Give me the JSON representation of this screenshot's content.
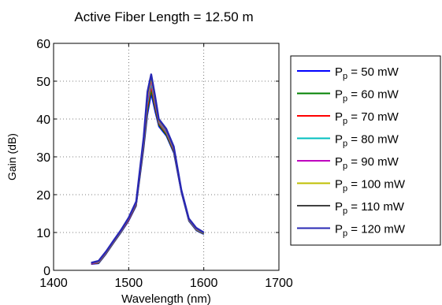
{
  "chart_data": {
    "type": "line",
    "title": "Active Fiber Length = 12.50 m",
    "xlabel": "Wavelength (nm)",
    "ylabel": "Gain (dB)",
    "xlim": [
      1400,
      1700
    ],
    "ylim": [
      0,
      60
    ],
    "xticks": [
      1400,
      1500,
      1600,
      1700
    ],
    "yticks": [
      0,
      10,
      20,
      30,
      40,
      50,
      60
    ],
    "grid": true,
    "legend_position": "right, outside plot",
    "legend_entries": [
      {
        "base": "P",
        "sub": "p",
        "rest": " = 50 mW"
      },
      {
        "base": "P",
        "sub": "p",
        "rest": " = 60 mW"
      },
      {
        "base": "P",
        "sub": "p",
        "rest": " = 70 mW"
      },
      {
        "base": "P",
        "sub": "p",
        "rest": " = 80 mW"
      },
      {
        "base": "P",
        "sub": "p",
        "rest": " = 90 mW"
      },
      {
        "base": "P",
        "sub": "p",
        "rest": " = 100 mW"
      },
      {
        "base": "P",
        "sub": "p",
        "rest": " = 110 mW"
      },
      {
        "base": "P",
        "sub": "p",
        "rest": " = 120 mW"
      }
    ],
    "series": [
      {
        "color": "#0000ff",
        "x": [
          1450,
          1460,
          1470,
          1480,
          1490,
          1500,
          1510,
          1520,
          1525,
          1530,
          1535,
          1540,
          1550,
          1560,
          1570,
          1580,
          1590,
          1600
        ],
        "y": [
          1.6,
          1.8,
          4.3,
          7.2,
          10.0,
          13.0,
          17.0,
          32.0,
          41.0,
          46.5,
          42.0,
          38.0,
          35.5,
          31.0,
          20.5,
          13.0,
          10.5,
          9.5
        ]
      },
      {
        "color": "#008000",
        "x": [
          1450,
          1460,
          1470,
          1480,
          1490,
          1500,
          1510,
          1520,
          1525,
          1530,
          1535,
          1540,
          1550,
          1560,
          1570,
          1580,
          1590,
          1600
        ],
        "y": [
          1.7,
          1.9,
          4.4,
          7.3,
          10.1,
          13.2,
          17.2,
          32.5,
          42.0,
          47.5,
          42.8,
          38.4,
          35.8,
          31.3,
          20.7,
          13.1,
          10.6,
          9.6
        ]
      },
      {
        "color": "#ff0000",
        "x": [
          1450,
          1460,
          1470,
          1480,
          1490,
          1500,
          1510,
          1520,
          1525,
          1530,
          1535,
          1540,
          1550,
          1560,
          1570,
          1580,
          1590,
          1600
        ],
        "y": [
          1.7,
          2.0,
          4.5,
          7.4,
          10.2,
          13.3,
          17.4,
          33.0,
          43.0,
          48.5,
          43.5,
          38.8,
          36.2,
          31.6,
          20.8,
          13.2,
          10.7,
          9.7
        ]
      },
      {
        "color": "#00bfbf",
        "x": [
          1450,
          1460,
          1470,
          1480,
          1490,
          1500,
          1510,
          1520,
          1525,
          1530,
          1535,
          1540,
          1550,
          1560,
          1570,
          1580,
          1590,
          1600
        ],
        "y": [
          1.8,
          2.1,
          4.6,
          7.5,
          10.3,
          13.5,
          17.6,
          33.5,
          44.0,
          49.3,
          44.2,
          39.1,
          36.5,
          31.9,
          20.9,
          13.3,
          10.8,
          9.8
        ]
      },
      {
        "color": "#bf00bf",
        "x": [
          1450,
          1460,
          1470,
          1480,
          1490,
          1500,
          1510,
          1520,
          1525,
          1530,
          1535,
          1540,
          1550,
          1560,
          1570,
          1580,
          1590,
          1600
        ],
        "y": [
          1.8,
          2.2,
          4.7,
          7.6,
          10.4,
          13.6,
          17.8,
          34.0,
          45.0,
          50.0,
          44.8,
          39.4,
          36.8,
          32.1,
          21.0,
          13.4,
          10.9,
          9.9
        ]
      },
      {
        "color": "#bfbf00",
        "x": [
          1450,
          1460,
          1470,
          1480,
          1490,
          1500,
          1510,
          1520,
          1525,
          1530,
          1535,
          1540,
          1550,
          1560,
          1570,
          1580,
          1590,
          1600
        ],
        "y": [
          1.9,
          2.3,
          4.8,
          7.7,
          10.5,
          13.7,
          18.0,
          34.4,
          45.8,
          50.6,
          45.3,
          39.6,
          37.0,
          32.3,
          21.1,
          13.5,
          11.0,
          9.9
        ]
      },
      {
        "color": "#404040",
        "x": [
          1450,
          1460,
          1470,
          1480,
          1490,
          1500,
          1510,
          1520,
          1525,
          1530,
          1535,
          1540,
          1550,
          1560,
          1570,
          1580,
          1590,
          1600
        ],
        "y": [
          1.9,
          2.4,
          4.9,
          7.8,
          10.6,
          13.8,
          18.1,
          34.8,
          46.5,
          51.2,
          45.8,
          39.8,
          37.2,
          32.5,
          21.2,
          13.6,
          11.1,
          10.0
        ]
      },
      {
        "color": "#2828b4",
        "x": [
          1450,
          1460,
          1470,
          1480,
          1490,
          1500,
          1510,
          1520,
          1525,
          1530,
          1535,
          1540,
          1550,
          1560,
          1570,
          1580,
          1590,
          1600
        ],
        "y": [
          2.0,
          2.5,
          5.0,
          7.9,
          10.7,
          13.9,
          18.2,
          35.2,
          47.2,
          51.8,
          46.2,
          40.0,
          37.4,
          32.7,
          21.3,
          13.7,
          11.2,
          10.0
        ]
      }
    ]
  }
}
